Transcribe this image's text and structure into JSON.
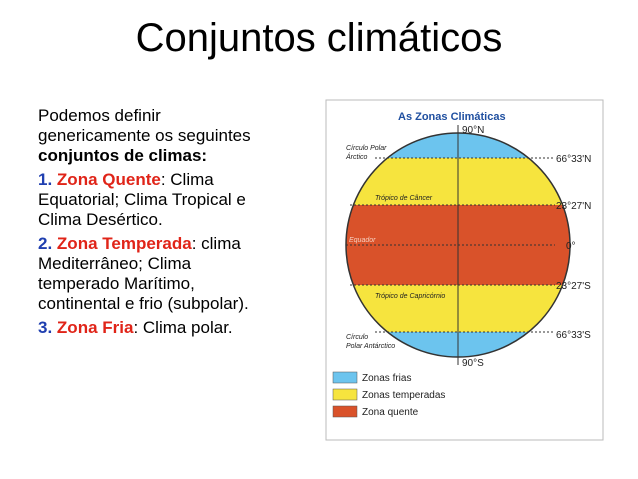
{
  "title": "Conjuntos climáticos",
  "intro": {
    "plain": "Podemos definir genericamente os seguintes ",
    "bold": "conjuntos de climas:"
  },
  "items": [
    {
      "number": "1.",
      "name": "Zona Quente",
      "rest": ": Clima Equatorial; Clima Tropical  e Clima Desértico."
    },
    {
      "number": "2.",
      "name": "Zona Temperada",
      "rest": ": clima Mediterrâneo; Clima temperado Marítimo, continental e frio (subpolar)."
    },
    {
      "number": "3.",
      "name": "Zona Fria",
      "rest": ": Clima polar."
    }
  ],
  "figure": {
    "title": "As Zonas Climáticas",
    "north_pole": "90°N",
    "arctic_circle": [
      "Círculo Polar",
      "Árctico"
    ],
    "arctic_lat": "66°33'N",
    "cancer": "Trópico de Câncer",
    "cancer_lat": "23°27'N",
    "equator": "Equador",
    "equator_lat": "0°",
    "capricorn": "Trópico de Capricórnio",
    "capricorn_lat": "23°27'S",
    "antarctic_circle": [
      "Círculo",
      "Polar Antárctico"
    ],
    "antarctic_lat": "66°33'S",
    "south_pole": "90°S",
    "legend": [
      "Zonas frias",
      "Zonas temperadas",
      "Zona quente"
    ]
  }
}
